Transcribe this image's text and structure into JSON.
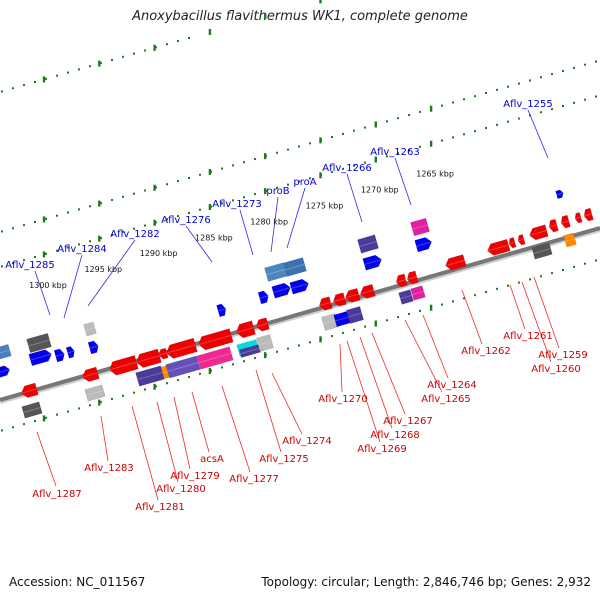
{
  "header": {
    "title": "Anoxybacillus flavithermus WK1, complete genome"
  },
  "footer": {
    "accession": "Accession: NC_011567",
    "summary": "Topology: circular; Length: 2,846,746 bp; Genes: 2,932"
  },
  "colors": {
    "backbone": "#777777",
    "tick": "#1f7a1f",
    "forward_label": "#0000cc",
    "reverse_label": "#cc0000",
    "leader_forward": "#2a2aee",
    "leader_reverse": "#ee2a2a"
  },
  "map": {
    "kbp_labels": [
      "1300 kbp",
      "1295 kbp",
      "1290 kbp",
      "1285 kbp",
      "1280 kbp",
      "1275 kbp",
      "1270 kbp",
      "1265 kbp"
    ],
    "forward_genes": [
      "Aflv_1285",
      "Aflv_1284",
      "Aflv_1282",
      "Aflv_1276",
      "Aflv_1273",
      "proB",
      "proA",
      "Aflv_1266",
      "Aflv_1263",
      "Aflv_1255"
    ],
    "reverse_genes": [
      "Aflv_1287",
      "Aflv_1283",
      "Aflv_1281",
      "Aflv_1280",
      "Aflv_1279",
      "acsA",
      "Aflv_1277",
      "Aflv_1275",
      "Aflv_1274",
      "Aflv_1270",
      "Aflv_1269",
      "Aflv_1268",
      "Aflv_1267",
      "Aflv_1265",
      "Aflv_1264",
      "Aflv_1262",
      "Aflv_1261",
      "Aflv_1260",
      "Aflv_1259"
    ]
  }
}
